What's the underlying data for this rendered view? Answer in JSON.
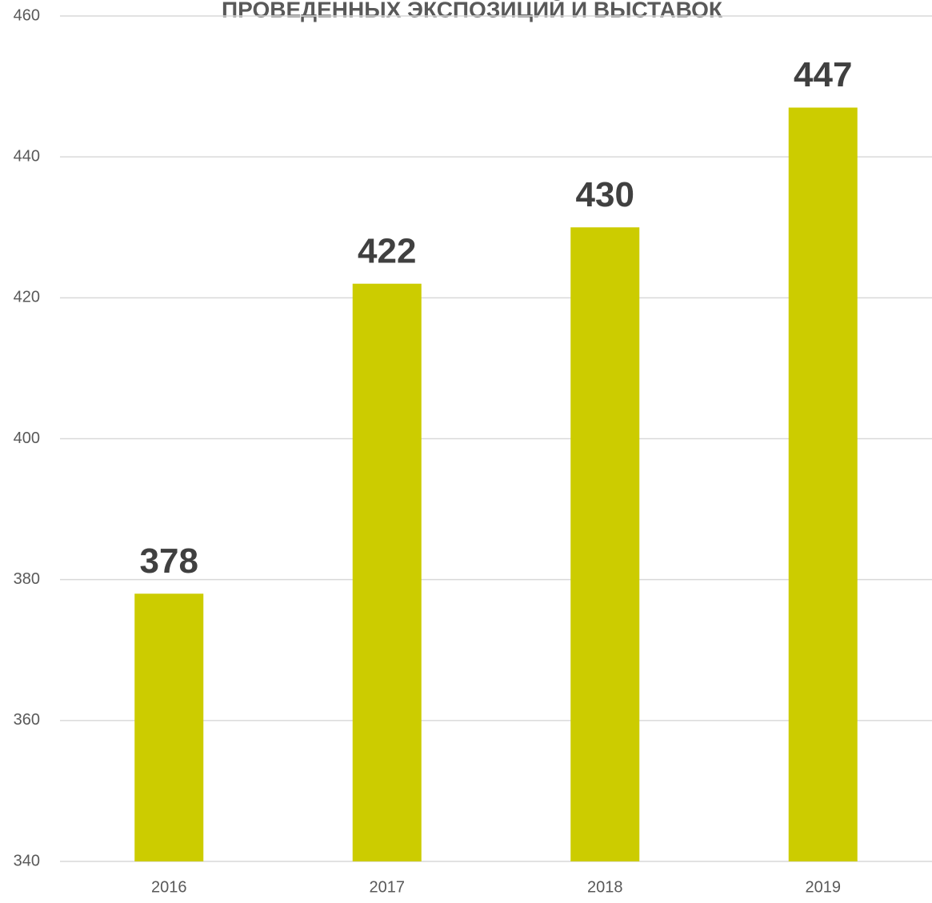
{
  "chart_data": {
    "type": "bar",
    "title": "ПРОВЕДЕННЫХ ЭКСПОЗИЦИЙ И ВЫСТАВОК",
    "categories": [
      "2016",
      "2017",
      "2018",
      "2019"
    ],
    "values": [
      378,
      422,
      430,
      447
    ],
    "color": "#cccc00",
    "ylim": [
      340,
      460
    ],
    "yticks": [
      340,
      360,
      380,
      400,
      420,
      440,
      460
    ],
    "grid": true
  }
}
